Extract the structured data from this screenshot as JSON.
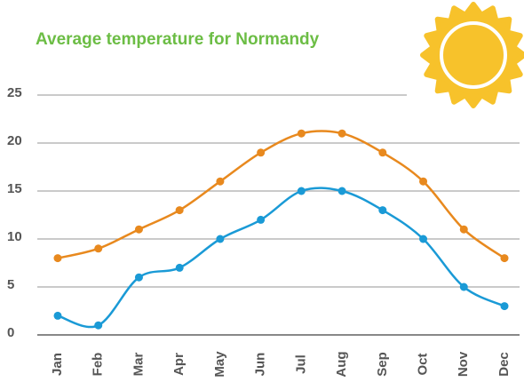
{
  "chart_data": {
    "type": "line",
    "title": "Average temperature for Normandy",
    "categories": [
      "Jan",
      "Feb",
      "Mar",
      "Apr",
      "May",
      "Jun",
      "Jul",
      "Aug",
      "Sep",
      "Oct",
      "Nov",
      "Dec"
    ],
    "series": [
      {
        "color": "#e8891e",
        "values": [
          8,
          9,
          11,
          13,
          16,
          19,
          21,
          21,
          19,
          16,
          11,
          8
        ]
      },
      {
        "color": "#1a9ad6",
        "values": [
          2,
          1,
          6,
          7,
          10,
          12,
          15,
          15,
          13,
          10,
          5,
          3
        ]
      }
    ],
    "ylim": [
      0,
      25
    ],
    "yticks": [
      0,
      5,
      10,
      15,
      20,
      25
    ],
    "grid": true,
    "smooth": true
  }
}
